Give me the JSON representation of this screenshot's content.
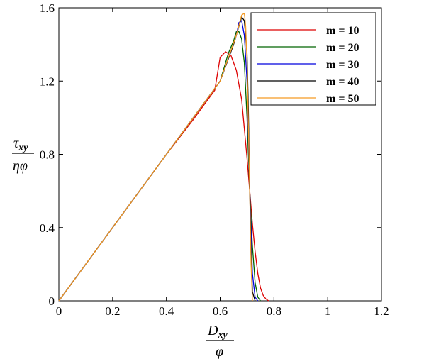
{
  "chart_data": {
    "type": "line",
    "title": "",
    "xlabel": {
      "numerator_symbol": "D",
      "numerator_subscript": "xy",
      "denominator_symbol": "φ"
    },
    "ylabel": {
      "numerator_symbol": "τ",
      "numerator_subscript": "xy",
      "denominator_symbol": "ηφ"
    },
    "xlim": [
      0,
      1.2
    ],
    "ylim": [
      0,
      1.6
    ],
    "xticks": [
      "0",
      "0.2",
      "0.4",
      "0.6",
      "0.8",
      "1",
      "1.2"
    ],
    "yticks": [
      "0",
      "0.4",
      "0.8",
      "1.2",
      "1.6"
    ],
    "xtick_values": [
      0,
      0.2,
      0.4,
      0.6,
      0.8,
      1.0,
      1.2
    ],
    "ytick_values": [
      0,
      0.4,
      0.8,
      1.2,
      1.6
    ],
    "grid": false,
    "legend_position": "top-right",
    "series": [
      {
        "name": "m = 10",
        "color": "#dd0000",
        "x": [
          0,
          0.1,
          0.2,
          0.3,
          0.4,
          0.5,
          0.55,
          0.58,
          0.6,
          0.62,
          0.64,
          0.66,
          0.68,
          0.7,
          0.71,
          0.72,
          0.73,
          0.74,
          0.75,
          0.76,
          0.77,
          0.78
        ],
        "y": [
          0,
          0.2,
          0.4,
          0.6,
          0.8,
          0.99,
          1.09,
          1.15,
          1.33,
          1.36,
          1.34,
          1.26,
          1.1,
          0.78,
          0.6,
          0.42,
          0.27,
          0.15,
          0.07,
          0.03,
          0.01,
          0
        ]
      },
      {
        "name": "m = 20",
        "color": "#006400",
        "x": [
          0,
          0.1,
          0.2,
          0.3,
          0.4,
          0.5,
          0.6,
          0.63,
          0.65,
          0.66,
          0.67,
          0.68,
          0.69,
          0.7,
          0.71,
          0.72,
          0.73,
          0.74,
          0.75
        ],
        "y": [
          0,
          0.2,
          0.4,
          0.6,
          0.8,
          1.0,
          1.2,
          1.35,
          1.42,
          1.47,
          1.47,
          1.43,
          1.3,
          1.0,
          0.6,
          0.3,
          0.1,
          0.02,
          0
        ]
      },
      {
        "name": "m = 30",
        "color": "#0000dd",
        "x": [
          0,
          0.1,
          0.2,
          0.3,
          0.4,
          0.5,
          0.6,
          0.64,
          0.66,
          0.67,
          0.68,
          0.69,
          0.7,
          0.71,
          0.72,
          0.73,
          0.74
        ],
        "y": [
          0,
          0.2,
          0.4,
          0.6,
          0.8,
          1.0,
          1.2,
          1.36,
          1.45,
          1.52,
          1.53,
          1.45,
          1.2,
          0.6,
          0.15,
          0.02,
          0
        ]
      },
      {
        "name": "m = 40",
        "color": "#000000",
        "x": [
          0,
          0.1,
          0.2,
          0.3,
          0.4,
          0.5,
          0.6,
          0.65,
          0.67,
          0.68,
          0.69,
          0.7,
          0.705,
          0.71,
          0.715,
          0.72,
          0.73
        ],
        "y": [
          0,
          0.2,
          0.4,
          0.6,
          0.8,
          1.0,
          1.2,
          1.4,
          1.5,
          1.55,
          1.53,
          1.35,
          1.05,
          0.6,
          0.25,
          0.05,
          0
        ]
      },
      {
        "name": "m = 50",
        "color": "#f59a23",
        "x": [
          0,
          0.1,
          0.2,
          0.3,
          0.4,
          0.5,
          0.6,
          0.66,
          0.68,
          0.69,
          0.695,
          0.7,
          0.705,
          0.71,
          0.715,
          0.72
        ],
        "y": [
          0,
          0.2,
          0.4,
          0.6,
          0.8,
          1.0,
          1.2,
          1.45,
          1.56,
          1.57,
          1.5,
          1.3,
          0.95,
          0.6,
          0.2,
          0
        ]
      }
    ]
  }
}
